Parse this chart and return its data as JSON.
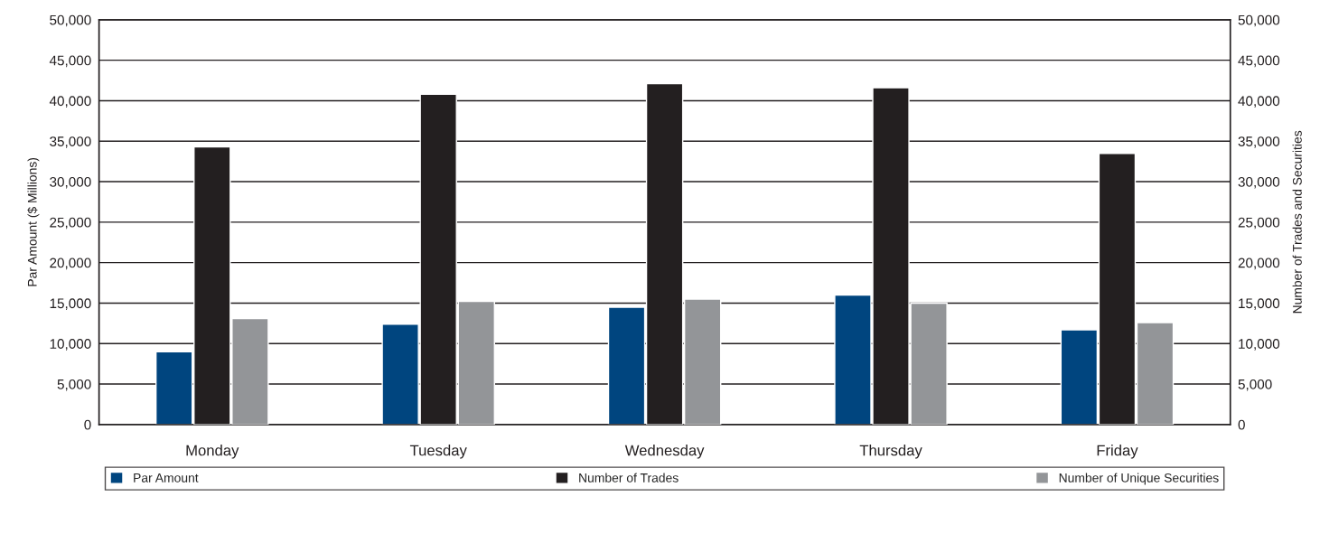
{
  "chart_data": {
    "type": "bar",
    "ylabel": "Par Amount ($ Millions)",
    "y2label": "Number of Trades and Securities",
    "categories": [
      "Monday",
      "Tuesday",
      "Wednesday",
      "Thursday",
      "Friday"
    ],
    "series": [
      {
        "name": "Par Amount",
        "color": "#00457f",
        "values": [
          9000,
          12400,
          14500,
          16000,
          11700
        ]
      },
      {
        "name": "Number of Trades",
        "color": "#231f20",
        "axis": "y2",
        "values": [
          34300,
          40800,
          42100,
          41600,
          33500
        ]
      },
      {
        "name": "Number of Unique Securities",
        "color": "#939598",
        "axis": "y2",
        "values": [
          13100,
          15200,
          15500,
          15000,
          12600
        ]
      }
    ],
    "ylim": [
      0,
      50000
    ],
    "yticks": [
      0,
      {
        "value": 5000,
        "label": "5,000"
      },
      {
        "value": 10000,
        "label": "10,000"
      },
      {
        "value": 15000,
        "label": "15,000"
      },
      {
        "value": 20000,
        "label": "20,000"
      },
      {
        "value": 25000,
        "label": "25,000"
      },
      {
        "value": 30000,
        "label": "30,000"
      },
      {
        "value": 35000,
        "label": "35,000"
      },
      {
        "value": 40000,
        "label": "40,000"
      },
      {
        "value": 45000,
        "label": "45,000"
      },
      {
        "value": 50000,
        "label": "50,000"
      }
    ],
    "y2lim": [
      0,
      50000
    ],
    "y2ticks": [
      0,
      {
        "value": 5000,
        "label": "5,000"
      },
      {
        "value": 10000,
        "label": "10,000"
      },
      {
        "value": 15000,
        "label": "15,000"
      },
      {
        "value": 20000,
        "label": "20,000"
      },
      {
        "value": 25000,
        "label": "25,000"
      },
      {
        "value": 30000,
        "label": "30,000"
      },
      {
        "value": 35000,
        "label": "35,000"
      },
      {
        "value": 40000,
        "label": "40,000"
      },
      {
        "value": 45000,
        "label": "45,000"
      },
      {
        "value": 50000,
        "label": "50,000"
      }
    ],
    "grid": "y",
    "legend": "bottom"
  }
}
